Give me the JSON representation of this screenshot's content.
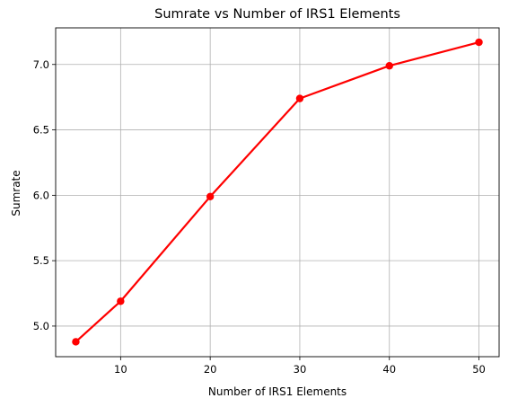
{
  "chart_data": {
    "type": "line",
    "title": "Sumrate vs Number of IRS1 Elements",
    "xlabel": "Number of IRS1 Elements",
    "ylabel": "Sumrate",
    "xlim": [
      2.75,
      52.25
    ],
    "ylim": [
      4.766,
      7.28
    ],
    "x_ticks": [
      10,
      20,
      30,
      40,
      50
    ],
    "y_ticks": [
      5.0,
      5.5,
      6.0,
      6.5,
      7.0
    ],
    "grid": true,
    "series": [
      {
        "color": "#ff0000",
        "marker": "circle",
        "x": [
          5,
          10,
          20,
          30,
          40,
          50
        ],
        "y": [
          4.88,
          5.19,
          5.99,
          6.74,
          6.99,
          7.17
        ]
      }
    ]
  }
}
